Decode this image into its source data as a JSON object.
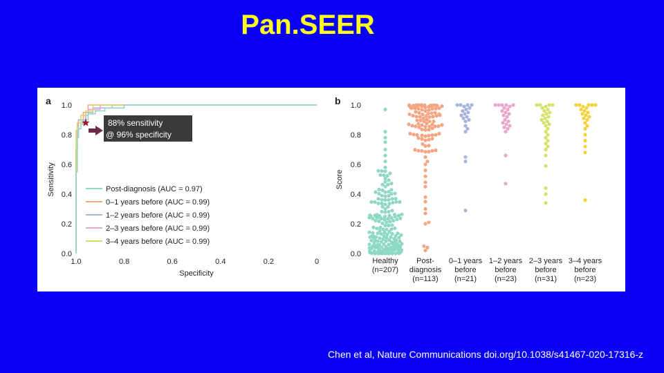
{
  "slide": {
    "title": "Pan.SEER",
    "citation": "Chen et al, Nature Communications  doi.org/10.1038/s41467-020-17316-z",
    "background_color": "#0a00f5",
    "title_color": "#ffff1a"
  },
  "chart_data": [
    {
      "panel_label": "a",
      "type": "line",
      "title": "",
      "xlabel": "Specificity",
      "ylabel": "Sensitivity",
      "x_ticks": [
        "1.0",
        "0.8",
        "0.6",
        "0.4",
        "0.2",
        "0"
      ],
      "y_ticks": [
        "0.0",
        "0.2",
        "0.4",
        "0.6",
        "0.8",
        "1.0"
      ],
      "xlim": [
        1.0,
        0.0
      ],
      "ylim": [
        0.0,
        1.0
      ],
      "x_reversed": true,
      "annotation": {
        "line1": "88% sensitivity",
        "line2": "@ 96% specificity",
        "marker": "star",
        "point": {
          "specificity": 0.96,
          "sensitivity": 0.88
        }
      },
      "legend_position": "lower-left",
      "series": [
        {
          "name": "Post-diagnosis (AUC = 0.97)",
          "color": "#8fd8c4",
          "points": [
            [
              1.0,
              0.0
            ],
            [
              0.995,
              0.55
            ],
            [
              0.99,
              0.78
            ],
            [
              0.98,
              0.84
            ],
            [
              0.97,
              0.87
            ],
            [
              0.95,
              0.9
            ],
            [
              0.92,
              0.94
            ],
            [
              0.88,
              0.96
            ],
            [
              0.8,
              0.98
            ],
            [
              0.7,
              1.0
            ],
            [
              0.0,
              1.0
            ]
          ]
        },
        {
          "name": "0–1 years before (AUC = 0.99)",
          "color": "#f4a582",
          "points": [
            [
              1.0,
              0.0
            ],
            [
              0.995,
              0.62
            ],
            [
              0.99,
              0.86
            ],
            [
              0.97,
              0.9
            ],
            [
              0.95,
              0.95
            ],
            [
              0.88,
              1.0
            ],
            [
              0.0,
              1.0
            ]
          ]
        },
        {
          "name": "1–2 years before (AUC = 0.99)",
          "color": "#a9b4dd",
          "points": [
            [
              1.0,
              0.0
            ],
            [
              0.995,
              0.71
            ],
            [
              0.99,
              0.86
            ],
            [
              0.96,
              0.9
            ],
            [
              0.93,
              0.95
            ],
            [
              0.85,
              0.98
            ],
            [
              0.84,
              1.0
            ],
            [
              0.0,
              1.0
            ]
          ]
        },
        {
          "name": "2–3 years before (AUC = 0.99)",
          "color": "#e8a6d0",
          "points": [
            [
              1.0,
              0.0
            ],
            [
              0.995,
              0.71
            ],
            [
              0.99,
              0.84
            ],
            [
              0.97,
              0.88
            ],
            [
              0.95,
              0.93
            ],
            [
              0.9,
              0.97
            ],
            [
              0.86,
              1.0
            ],
            [
              0.0,
              1.0
            ]
          ]
        },
        {
          "name": "3–4 years before (AUC = 0.99)",
          "color": "#d6d96b",
          "points": [
            [
              1.0,
              0.0
            ],
            [
              0.995,
              0.83
            ],
            [
              0.98,
              0.88
            ],
            [
              0.96,
              0.93
            ],
            [
              0.93,
              0.96
            ],
            [
              0.9,
              1.0
            ],
            [
              0.0,
              1.0
            ]
          ]
        }
      ]
    },
    {
      "panel_label": "b",
      "type": "scatter",
      "title": "",
      "xlabel": "",
      "ylabel": "Score",
      "y_ticks": [
        "0.0",
        "0.2",
        "0.4",
        "0.6",
        "0.8",
        "1.0"
      ],
      "ylim": [
        0.0,
        1.0
      ],
      "groups": [
        {
          "label_line1": "Healthy",
          "label_line2": "(n=207)",
          "n": 207,
          "color": "#8fd8c4",
          "profile": "low",
          "high_values": [
            0.97,
            0.82,
            0.78,
            0.75,
            0.7,
            0.66,
            0.62,
            0.58
          ]
        },
        {
          "label_line1": "Post-",
          "label_line2": "diagnosis",
          "label_line3": "(n=113)",
          "n": 113,
          "color": "#f4a582",
          "profile": "high",
          "low_values": [
            0.02,
            0.04,
            0.05,
            0.2,
            0.21,
            0.27,
            0.3,
            0.35,
            0.38,
            0.45,
            0.48,
            0.52,
            0.56,
            0.6,
            0.62,
            0.65
          ]
        },
        {
          "label_line1": "0–1 years",
          "label_line2": "before",
          "label_line3": "(n=21)",
          "n": 21,
          "color": "#a9b4dd",
          "values": [
            1.0,
            1.0,
            1.0,
            1.0,
            0.99,
            0.98,
            0.97,
            0.96,
            0.95,
            0.94,
            0.93,
            0.92,
            0.91,
            0.9,
            0.89,
            0.86,
            0.84,
            0.82,
            0.65,
            0.62,
            0.29
          ]
        },
        {
          "label_line1": "1–2 years",
          "label_line2": "before",
          "label_line3": "(n=23)",
          "n": 23,
          "color": "#e8a6d0",
          "values": [
            1.0,
            1.0,
            1.0,
            1.0,
            1.0,
            0.99,
            0.98,
            0.97,
            0.96,
            0.95,
            0.94,
            0.93,
            0.92,
            0.9,
            0.89,
            0.88,
            0.87,
            0.86,
            0.85,
            0.84,
            0.82,
            0.66,
            0.47
          ]
        },
        {
          "label_line1": "2–3 years",
          "label_line2": "before",
          "label_line3": "(n=31)",
          "n": 31,
          "color": "#d6e06a",
          "values": [
            1.0,
            1.0,
            1.0,
            1.0,
            0.99,
            0.98,
            0.97,
            0.96,
            0.95,
            0.94,
            0.93,
            0.92,
            0.91,
            0.9,
            0.89,
            0.88,
            0.87,
            0.86,
            0.84,
            0.82,
            0.8,
            0.78,
            0.76,
            0.74,
            0.72,
            0.7,
            0.66,
            0.59,
            0.44,
            0.4,
            0.34
          ]
        },
        {
          "label_line1": "3–4 years",
          "label_line2": "before",
          "label_line3": "(n=23)",
          "n": 23,
          "color": "#f2d33c",
          "values": [
            1.0,
            1.0,
            1.0,
            1.0,
            1.0,
            0.99,
            0.98,
            0.97,
            0.96,
            0.95,
            0.94,
            0.93,
            0.92,
            0.91,
            0.9,
            0.88,
            0.86,
            0.84,
            0.8,
            0.76,
            0.72,
            0.68,
            0.36
          ]
        }
      ]
    }
  ]
}
